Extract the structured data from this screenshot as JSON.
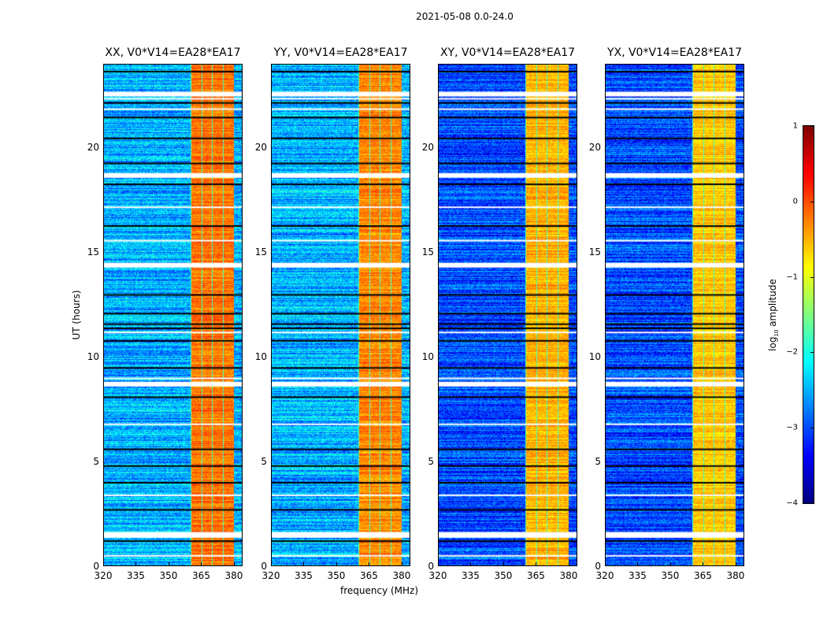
{
  "chart_data": {
    "type": "heatmap",
    "title": "2021-05-08 0.0-24.0",
    "xlabel": "frequency (MHz)",
    "ylabel": "UT (hours)",
    "xlim": [
      320,
      384
    ],
    "ylim": [
      0,
      24
    ],
    "xticks": [
      320,
      335,
      350,
      365,
      380
    ],
    "yticks": [
      0,
      5,
      10,
      15,
      20
    ],
    "panels": [
      {
        "title": "XX, V0*V14=EA28*EA17",
        "base_level": -2.5,
        "band_level": -0.2
      },
      {
        "title": "YY, V0*V14=EA28*EA17",
        "base_level": -2.5,
        "band_level": -0.3
      },
      {
        "title": "XY, V0*V14=EA28*EA17",
        "base_level": -3.0,
        "band_level": -0.5
      },
      {
        "title": "YX, V0*V14=EA28*EA17",
        "base_level": -3.0,
        "band_level": -0.6
      }
    ],
    "bright_band_mhz": [
      360,
      380
    ],
    "colorbar": {
      "label": "log10 amplitude",
      "label_main": "log",
      "label_sub": "10",
      "label_rest": " amplitude",
      "range": [
        -4,
        1
      ],
      "ticks": [
        1,
        0,
        -1,
        -2,
        -3,
        -4
      ],
      "tick_labels": [
        "1",
        "0",
        "−1",
        "−2",
        "−3",
        "−4"
      ],
      "colormap": "jet"
    },
    "flagged_white_hours": [
      22.7,
      22.4,
      21.9,
      18.8,
      17.2,
      15.6,
      14.5,
      11.2,
      9.0,
      8.8,
      6.8,
      3.4,
      1.6,
      1.4,
      0.5
    ],
    "flagged_black_hours": [
      23.7,
      22.2,
      21.5,
      20.5,
      19.3,
      18.3,
      16.3,
      13.0,
      12.1,
      11.6,
      11.4,
      10.8,
      9.5,
      8.1,
      5.6,
      4.8,
      4.0,
      2.7,
      1.2
    ]
  }
}
